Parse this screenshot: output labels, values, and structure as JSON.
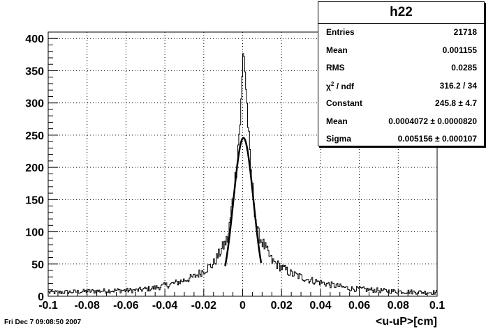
{
  "chart_data": {
    "type": "histogram",
    "histogram_name": "h22",
    "xlabel": "<u-uP>[cm]",
    "xlim": [
      -0.1,
      0.1
    ],
    "ylim": [
      0,
      410
    ],
    "x_ticks": [
      "-0.1",
      "-0.08",
      "-0.06",
      "-0.04",
      "-0.02",
      "0",
      "0.02",
      "0.04",
      "0.06",
      "0.08",
      "0.1"
    ],
    "y_ticks": [
      "0",
      "50",
      "100",
      "150",
      "200",
      "250",
      "300",
      "350",
      "400"
    ],
    "grid": true,
    "bins": [
      {
        "x_range": [
          -0.1,
          -0.09
        ],
        "approx_count": 6
      },
      {
        "x_range": [
          -0.09,
          -0.08
        ],
        "approx_count": 7
      },
      {
        "x_range": [
          -0.08,
          -0.07
        ],
        "approx_count": 8
      },
      {
        "x_range": [
          -0.07,
          -0.06
        ],
        "approx_count": 9
      },
      {
        "x_range": [
          -0.06,
          -0.05
        ],
        "approx_count": 9
      },
      {
        "x_range": [
          -0.05,
          -0.04
        ],
        "approx_count": 13
      },
      {
        "x_range": [
          -0.04,
          -0.03
        ],
        "approx_count": 20
      },
      {
        "x_range": [
          -0.03,
          -0.02
        ],
        "approx_count": 30
      },
      {
        "x_range": [
          -0.02,
          -0.01
        ],
        "approx_count": 50
      },
      {
        "x_range": [
          -0.01,
          -0.005
        ],
        "approx_count": 90
      },
      {
        "x_range": [
          -0.005,
          -0.002
        ],
        "approx_count": 190
      },
      {
        "x_range": [
          -0.002,
          0.0
        ],
        "approx_count": 280
      },
      {
        "x_range": [
          0.0,
          0.001
        ],
        "approx_count": 392
      },
      {
        "x_range": [
          0.001,
          0.003
        ],
        "approx_count": 310
      },
      {
        "x_range": [
          0.003,
          0.005
        ],
        "approx_count": 200
      },
      {
        "x_range": [
          0.005,
          0.01
        ],
        "approx_count": 100
      },
      {
        "x_range": [
          0.01,
          0.02
        ],
        "approx_count": 55
      },
      {
        "x_range": [
          0.02,
          0.03
        ],
        "approx_count": 35
      },
      {
        "x_range": [
          0.03,
          0.04
        ],
        "approx_count": 25
      },
      {
        "x_range": [
          0.04,
          0.05
        ],
        "approx_count": 18
      },
      {
        "x_range": [
          0.05,
          0.06
        ],
        "approx_count": 12
      },
      {
        "x_range": [
          0.06,
          0.07
        ],
        "approx_count": 10
      },
      {
        "x_range": [
          0.07,
          0.08
        ],
        "approx_count": 8
      },
      {
        "x_range": [
          0.08,
          0.09
        ],
        "approx_count": 7
      },
      {
        "x_range": [
          0.09,
          0.1
        ],
        "approx_count": 6
      }
    ],
    "fit": {
      "function": "gaussian",
      "constant": 245.8,
      "mean": 0.0004072,
      "sigma": 0.005156,
      "x_range": [
        -0.009,
        0.0095
      ]
    }
  },
  "stats_box": {
    "title": "h22",
    "entries_label": "Entries",
    "entries_value": "21718",
    "mean_label": "Mean",
    "mean_value": "0.001155",
    "rms_label": "RMS",
    "rms_value": "0.0285",
    "chi2_chi": "χ",
    "chi2_sup": "2",
    "chi2_rest": " / ndf",
    "chi2_value": "316.2 / 34",
    "constant_label": "Constant",
    "constant_value": "245.8 ± 4.7",
    "fitmean_label": "Mean",
    "fitmean_value": "0.0004072 ± 0.0000820",
    "sigma_label": "Sigma",
    "sigma_value": "0.005156 ± 0.000107"
  },
  "timestamp": "Fri Dec  7 09:08:50 2007"
}
